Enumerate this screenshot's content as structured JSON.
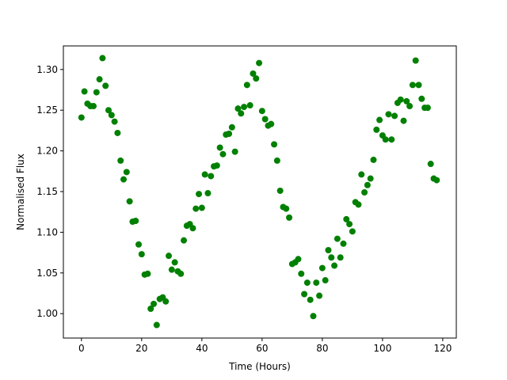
{
  "chart_data": {
    "type": "scatter",
    "x_label": "Time (Hours)",
    "y_label": "Normalised Flux",
    "color": "#008000",
    "x": [
      0,
      1,
      2,
      3,
      4,
      5,
      6,
      7,
      8,
      9,
      10,
      11,
      12,
      13,
      14,
      15,
      16,
      17,
      18,
      19,
      20,
      21,
      22,
      23,
      24,
      25,
      26,
      27,
      28,
      29,
      30,
      31,
      32,
      33,
      34,
      35,
      36,
      37,
      38,
      39,
      40,
      41,
      42,
      43,
      44,
      45,
      46,
      47,
      48,
      49,
      50,
      51,
      52,
      53,
      54,
      55,
      56,
      57,
      58,
      59,
      60,
      61,
      62,
      63,
      64,
      65,
      66,
      67,
      68,
      69,
      70,
      71,
      72,
      73,
      74,
      75,
      76,
      77,
      78,
      79,
      80,
      81,
      82,
      83,
      84,
      85,
      86,
      87,
      88,
      89,
      90,
      91,
      92,
      93,
      94,
      95,
      96,
      97,
      98,
      99,
      100,
      101,
      102,
      103,
      104,
      105,
      106,
      107,
      108,
      109,
      110,
      111,
      112,
      113,
      114,
      115,
      116,
      117,
      118
    ],
    "values": [
      1.241,
      1.273,
      1.258,
      1.255,
      1.255,
      1.272,
      1.288,
      1.314,
      1.28,
      1.25,
      1.244,
      1.236,
      1.222,
      1.188,
      1.165,
      1.174,
      1.138,
      1.113,
      1.114,
      1.085,
      1.073,
      1.048,
      1.049,
      1.006,
      1.012,
      0.986,
      1.018,
      1.02,
      1.015,
      1.071,
      1.054,
      1.063,
      1.052,
      1.049,
      1.09,
      1.108,
      1.11,
      1.105,
      1.129,
      1.147,
      1.13,
      1.171,
      1.148,
      1.169,
      1.181,
      1.182,
      1.204,
      1.196,
      1.22,
      1.221,
      1.229,
      1.199,
      1.252,
      1.246,
      1.254,
      1.281,
      1.256,
      1.295,
      1.289,
      1.308,
      1.249,
      1.239,
      1.231,
      1.233,
      1.208,
      1.188,
      1.151,
      1.131,
      1.129,
      1.118,
      1.061,
      1.063,
      1.067,
      1.049,
      1.024,
      1.038,
      1.017,
      0.997,
      1.038,
      1.022,
      1.056,
      1.041,
      1.078,
      1.069,
      1.059,
      1.092,
      1.069,
      1.086,
      1.116,
      1.11,
      1.101,
      1.137,
      1.134,
      1.171,
      1.149,
      1.158,
      1.166,
      1.189,
      1.226,
      1.238,
      1.219,
      1.214,
      1.245,
      1.214,
      1.243,
      1.259,
      1.263,
      1.237,
      1.261,
      1.255,
      1.281,
      1.311,
      1.281,
      1.264,
      1.253,
      1.253,
      1.184,
      1.166,
      1.164
    ],
    "xlim": [
      -6,
      124.5
    ],
    "ylim": [
      0.97,
      1.329
    ],
    "xticks": [
      0,
      20,
      40,
      60,
      80,
      100,
      120
    ],
    "yticks": [
      {
        "value": 1.0,
        "label": "1.00"
      },
      {
        "value": 1.05,
        "label": "1.05"
      },
      {
        "value": 1.1,
        "label": "1.10"
      },
      {
        "value": 1.15,
        "label": "1.15"
      },
      {
        "value": 1.2,
        "label": "1.20"
      },
      {
        "value": 1.25,
        "label": "1.25"
      },
      {
        "value": 1.3,
        "label": "1.30"
      }
    ]
  }
}
